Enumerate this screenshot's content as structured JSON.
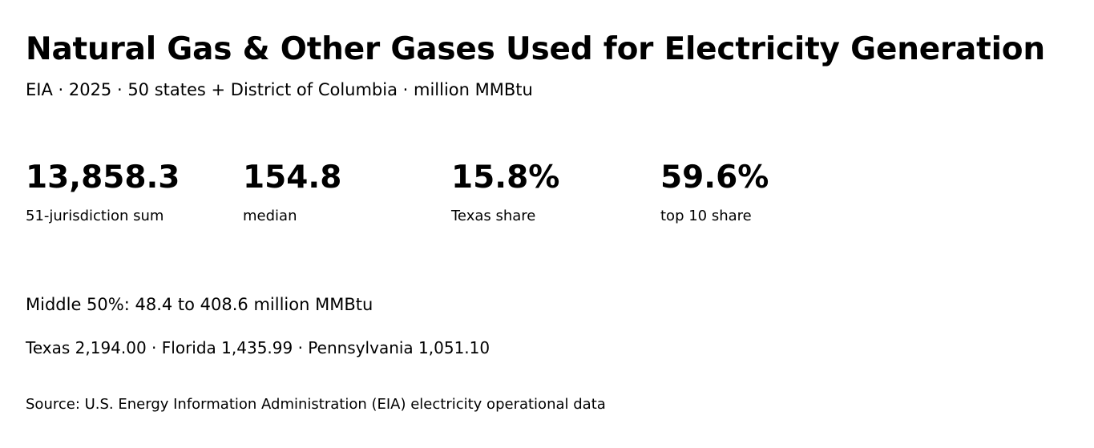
{
  "header": {
    "title": "Natural Gas & Other Gases Used for Electricity Generation",
    "subtitle": "EIA · 2025 · 50 states + District of Columbia · million MMBtu"
  },
  "stats": [
    {
      "value": "13,858.3",
      "label": "51-jurisdiction sum"
    },
    {
      "value": "154.8",
      "label": "median"
    },
    {
      "value": "15.8%",
      "label": "Texas share"
    },
    {
      "value": "59.6%",
      "label": "top 10 share"
    }
  ],
  "details": {
    "middle_range": "Middle 50%: 48.4 to 408.6 million MMBtu",
    "top_states": "Texas 2,194.00 · Florida 1,435.99 · Pennsylvania 1,051.10"
  },
  "footer": {
    "source": "Source: U.S. Energy Information Administration (EIA) electricity operational data"
  }
}
